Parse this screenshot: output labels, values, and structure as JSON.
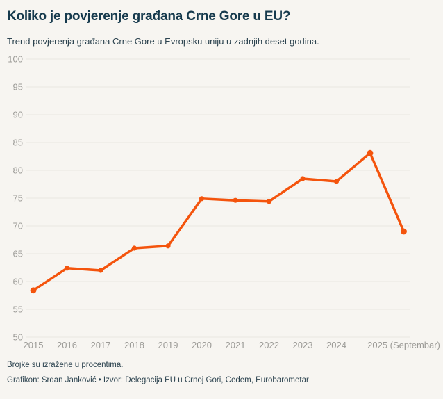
{
  "header": {
    "title": "Koliko je povjerenje građana Crne Gore u EU?",
    "subtitle": "Trend povjerenja građana Crne Gore u Evropsku uniju u zadnjih deset godina."
  },
  "footer": {
    "note": "Brojke su izražene u procentima.",
    "credits": "Grafikon: Srđan Janković • Izvor: Delegacija EU u Crnoj Gori, Cedem, Eurobarometar"
  },
  "colors": {
    "background": "#f7f5f1",
    "title": "#163a4d",
    "text": "#2d4450",
    "axis_labels": "#9c9b97",
    "gridline": "#e8e6e1",
    "line": "#f4540d"
  },
  "chart_data": {
    "type": "line",
    "title": "Koliko je povjerenje građana Crne Gore u EU?",
    "subtitle": "Trend povjerenja građana Crne Gore u Evropsku uniju u zadnjih deset godina.",
    "x_labels": [
      "2015",
      "2016",
      "2017",
      "2018",
      "2019",
      "2020",
      "2021",
      "2022",
      "2023",
      "2024",
      "",
      "2025 (Septembar)"
    ],
    "values": [
      58.4,
      62.4,
      62.0,
      66.0,
      66.4,
      74.9,
      74.6,
      74.4,
      78.5,
      78.0,
      83.1,
      69.0
    ],
    "y_ticks": [
      100,
      95,
      90,
      85,
      80,
      75,
      70,
      65,
      60,
      55,
      50
    ],
    "ylim": [
      50,
      100
    ],
    "grid": true,
    "legend": "none",
    "line_color": "#f4540d",
    "note": "Brojke su izražene u procentima."
  }
}
